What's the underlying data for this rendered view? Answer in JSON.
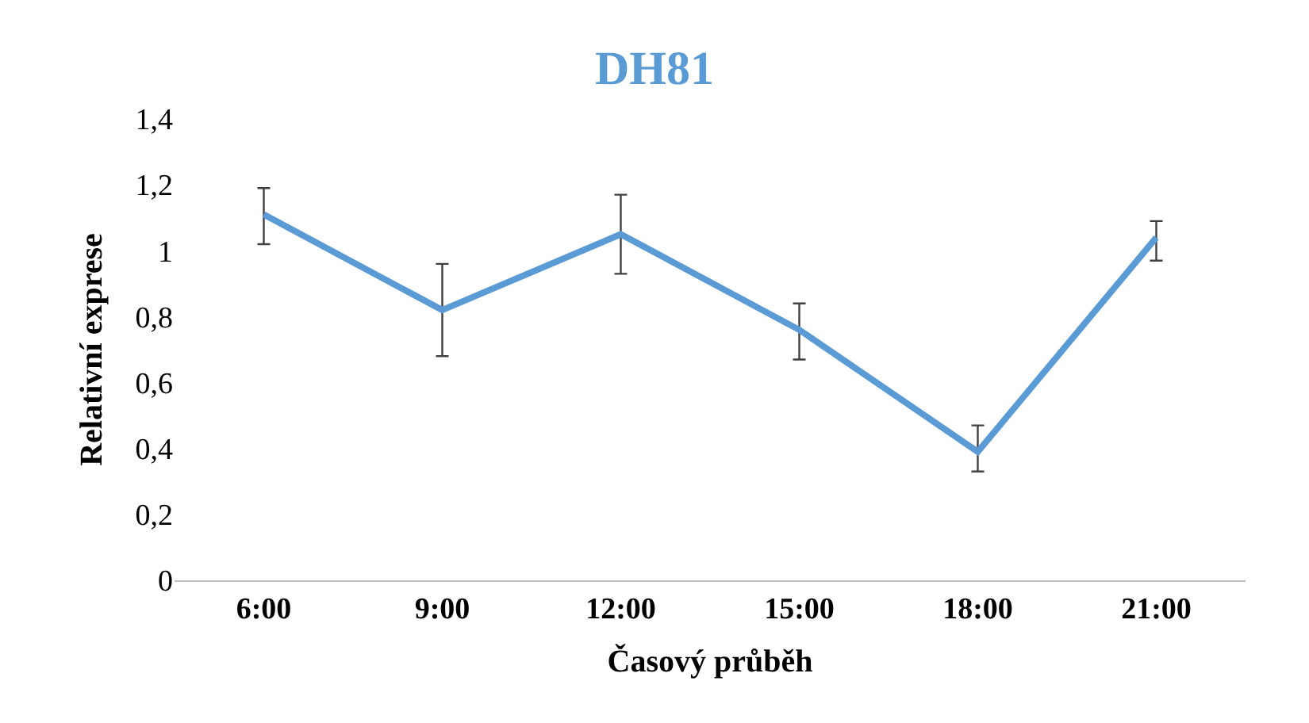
{
  "chart_data": {
    "type": "line",
    "title": "DH81",
    "xlabel": "Časový průběh",
    "ylabel": "Relativní exprese",
    "categories": [
      "6:00",
      "9:00",
      "12:00",
      "15:00",
      "18:00",
      "21:00"
    ],
    "series": [
      {
        "color": "#5b9bd5",
        "values": [
          1.11,
          0.82,
          1.05,
          0.76,
          0.39,
          1.04
        ],
        "errors": [
          [
            1.02,
            1.19
          ],
          [
            0.68,
            0.96
          ],
          [
            0.93,
            1.17
          ],
          [
            0.67,
            0.84
          ],
          [
            0.33,
            0.47
          ],
          [
            0.97,
            1.09
          ]
        ]
      }
    ],
    "ylim": [
      0,
      1.4
    ],
    "yticks": [
      0,
      {
        "value": 0.2,
        "label": "0,2"
      },
      {
        "value": 0.4,
        "label": "0,4"
      },
      {
        "value": 0.6,
        "label": "0,6"
      },
      {
        "value": 0.8,
        "label": "0,8"
      },
      1,
      {
        "value": 1.2,
        "label": "1,2"
      },
      {
        "value": 1.4,
        "label": "1,4"
      }
    ],
    "marker": "none",
    "line_style": "solid"
  }
}
